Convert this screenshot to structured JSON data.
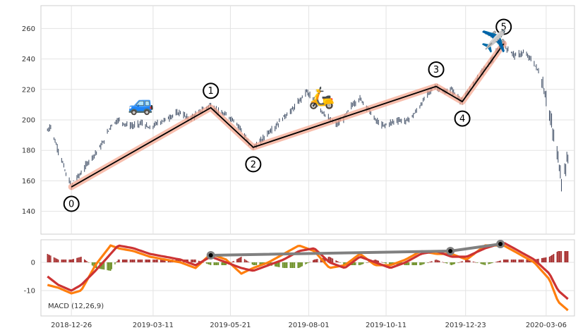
{
  "chart_data": [
    {
      "type": "ohlc",
      "title": "",
      "xlabel": "",
      "ylabel": "",
      "ylim": [
        125,
        275
      ],
      "yticks": [
        140,
        160,
        180,
        200,
        220,
        240,
        260
      ],
      "grid": true,
      "price_trace": [
        [
          "2018-12-04",
          193
        ],
        [
          "2018-12-07",
          196
        ],
        [
          "2018-12-10",
          188
        ],
        [
          "2018-12-14",
          180
        ],
        [
          "2018-12-18",
          172
        ],
        [
          "2018-12-21",
          164
        ],
        [
          "2018-12-24",
          160
        ],
        [
          "2018-12-26",
          156
        ],
        [
          "2018-12-28",
          160
        ],
        [
          "2019-01-04",
          165
        ],
        [
          "2019-01-10",
          172
        ],
        [
          "2019-01-17",
          178
        ],
        [
          "2019-01-24",
          185
        ],
        [
          "2019-01-31",
          196
        ],
        [
          "2019-02-07",
          200
        ],
        [
          "2019-02-14",
          197
        ],
        [
          "2019-02-21",
          196
        ],
        [
          "2019-03-01",
          198
        ],
        [
          "2019-03-08",
          194
        ],
        [
          "2019-03-15",
          198
        ],
        [
          "2019-03-22",
          200
        ],
        [
          "2019-03-29",
          203
        ],
        [
          "2019-04-05",
          205
        ],
        [
          "2019-04-12",
          201
        ],
        [
          "2019-04-19",
          203
        ],
        [
          "2019-04-26",
          207
        ],
        [
          "2019-05-03",
          210
        ],
        [
          "2019-05-10",
          205
        ],
        [
          "2019-05-17",
          203
        ],
        [
          "2019-05-24",
          200
        ],
        [
          "2019-05-31",
          194
        ],
        [
          "2019-06-07",
          184
        ],
        [
          "2019-06-11",
          182
        ],
        [
          "2019-06-18",
          186
        ],
        [
          "2019-06-25",
          192
        ],
        [
          "2019-07-02",
          196
        ],
        [
          "2019-07-09",
          202
        ],
        [
          "2019-07-16",
          206
        ],
        [
          "2019-07-23",
          212
        ],
        [
          "2019-07-30",
          219
        ],
        [
          "2019-08-06",
          212
        ],
        [
          "2019-08-13",
          206
        ],
        [
          "2019-08-20",
          200
        ],
        [
          "2019-08-27",
          197
        ],
        [
          "2019-09-03",
          202
        ],
        [
          "2019-09-10",
          210
        ],
        [
          "2019-09-17",
          214
        ],
        [
          "2019-09-24",
          208
        ],
        [
          "2019-10-01",
          200
        ],
        [
          "2019-10-08",
          196
        ],
        [
          "2019-10-15",
          198
        ],
        [
          "2019-10-22",
          200
        ],
        [
          "2019-10-29",
          199
        ],
        [
          "2019-11-05",
          203
        ],
        [
          "2019-11-12",
          210
        ],
        [
          "2019-11-19",
          218
        ],
        [
          "2019-11-26",
          222
        ],
        [
          "2019-12-03",
          218
        ],
        [
          "2019-12-10",
          220
        ],
        [
          "2019-12-17",
          214
        ],
        [
          "2019-12-20",
          212
        ],
        [
          "2019-12-27",
          220
        ],
        [
          "2020-01-03",
          228
        ],
        [
          "2020-01-10",
          234
        ],
        [
          "2020-01-17",
          240
        ],
        [
          "2020-01-22",
          246
        ],
        [
          "2020-01-27",
          250
        ],
        [
          "2020-01-31",
          246
        ],
        [
          "2020-02-07",
          242
        ],
        [
          "2020-02-14",
          244
        ],
        [
          "2020-02-21",
          240
        ],
        [
          "2020-02-28",
          232
        ],
        [
          "2020-03-04",
          220
        ],
        [
          "2020-03-09",
          205
        ],
        [
          "2020-03-13",
          188
        ],
        [
          "2020-03-17",
          175
        ],
        [
          "2020-03-20",
          160
        ],
        [
          "2020-03-24",
          170
        ],
        [
          "2020-03-26",
          175
        ]
      ],
      "pivots": [
        {
          "label": "0",
          "x": "2018-12-26",
          "y": 156
        },
        {
          "label": "1",
          "x": "2019-05-03",
          "y": 208
        },
        {
          "label": "2",
          "x": "2019-06-11",
          "y": 182
        },
        {
          "label": "3",
          "x": "2019-11-26",
          "y": 222
        },
        {
          "label": "4",
          "x": "2019-12-20",
          "y": 212
        },
        {
          "label": "5",
          "x": "2020-01-27",
          "y": 250
        }
      ],
      "colors": {
        "candles": "#3b4a62",
        "zigzag": "#000000",
        "zigzag_glow": "#f4a38a"
      }
    },
    {
      "type": "bar_line",
      "ylim": [
        -19,
        8
      ],
      "yticks": [
        0,
        -10
      ],
      "annotation": "MACD (12,26,9)",
      "macd_line": [
        [
          "2018-12-04",
          -5
        ],
        [
          "2018-12-14",
          -8
        ],
        [
          "2018-12-26",
          -10
        ],
        [
          "2019-01-04",
          -8
        ],
        [
          "2019-01-17",
          -3
        ],
        [
          "2019-01-31",
          3
        ],
        [
          "2019-02-07",
          6
        ],
        [
          "2019-02-21",
          5
        ],
        [
          "2019-03-08",
          3
        ],
        [
          "2019-03-22",
          2
        ],
        [
          "2019-04-05",
          1
        ],
        [
          "2019-04-19",
          -1
        ],
        [
          "2019-05-03",
          2
        ],
        [
          "2019-05-17",
          0
        ],
        [
          "2019-05-31",
          -2
        ],
        [
          "2019-06-11",
          -3
        ],
        [
          "2019-06-25",
          -1
        ],
        [
          "2019-07-09",
          1
        ],
        [
          "2019-07-23",
          4
        ],
        [
          "2019-08-06",
          5
        ],
        [
          "2019-08-20",
          0
        ],
        [
          "2019-09-03",
          -2
        ],
        [
          "2019-09-17",
          2
        ],
        [
          "2019-10-01",
          0
        ],
        [
          "2019-10-15",
          -2
        ],
        [
          "2019-10-29",
          0
        ],
        [
          "2019-11-12",
          3
        ],
        [
          "2019-11-26",
          4
        ],
        [
          "2019-12-10",
          2
        ],
        [
          "2019-12-24",
          2
        ],
        [
          "2020-01-10",
          5
        ],
        [
          "2020-01-27",
          7
        ],
        [
          "2020-02-10",
          4
        ],
        [
          "2020-02-24",
          1
        ],
        [
          "2020-03-09",
          -4
        ],
        [
          "2020-03-17",
          -10
        ],
        [
          "2020-03-26",
          -13
        ]
      ],
      "signal_line": [
        [
          "2018-12-04",
          -8
        ],
        [
          "2018-12-14",
          -9
        ],
        [
          "2018-12-26",
          -11
        ],
        [
          "2019-01-04",
          -10
        ],
        [
          "2019-01-17",
          -1
        ],
        [
          "2019-01-31",
          6
        ],
        [
          "2019-02-07",
          5
        ],
        [
          "2019-02-21",
          4
        ],
        [
          "2019-03-08",
          2
        ],
        [
          "2019-03-22",
          1
        ],
        [
          "2019-04-05",
          0
        ],
        [
          "2019-04-19",
          -2
        ],
        [
          "2019-05-03",
          3
        ],
        [
          "2019-05-17",
          1
        ],
        [
          "2019-05-31",
          -4
        ],
        [
          "2019-06-11",
          -2
        ],
        [
          "2019-06-25",
          0
        ],
        [
          "2019-07-09",
          3
        ],
        [
          "2019-07-23",
          6
        ],
        [
          "2019-08-06",
          4
        ],
        [
          "2019-08-20",
          -2
        ],
        [
          "2019-09-03",
          -1
        ],
        [
          "2019-09-17",
          3
        ],
        [
          "2019-10-01",
          -1
        ],
        [
          "2019-10-15",
          -1
        ],
        [
          "2019-10-29",
          1
        ],
        [
          "2019-11-12",
          4
        ],
        [
          "2019-11-26",
          3
        ],
        [
          "2019-12-10",
          3
        ],
        [
          "2019-12-24",
          1
        ],
        [
          "2020-01-10",
          6
        ],
        [
          "2020-01-27",
          6
        ],
        [
          "2020-02-10",
          3
        ],
        [
          "2020-02-24",
          0
        ],
        [
          "2020-03-09",
          -6
        ],
        [
          "2020-03-17",
          -14
        ],
        [
          "2020-03-26",
          -17
        ]
      ],
      "divergence_markers": [
        {
          "x": "2019-05-03",
          "y": 2.5
        },
        {
          "x": "2019-12-09",
          "y": 4
        },
        {
          "x": "2020-01-24",
          "y": 6.5
        }
      ],
      "colors": {
        "macd": "#cc3333",
        "signal": "#ff7f0e",
        "hist_positive": "#a52a2a",
        "hist_negative": "#6b8e23",
        "divergence": "#808080"
      }
    }
  ],
  "xaxis": {
    "ticks": [
      {
        "date": "2018-12-26",
        "label": "2018-12-26"
      },
      {
        "date": "2019-03-11",
        "label": "2019-03-11"
      },
      {
        "date": "2019-05-21",
        "label": "2019-05-21"
      },
      {
        "date": "2019-08-01",
        "label": "2019-08-01"
      },
      {
        "date": "2019-10-11",
        "label": "2019-10-11"
      },
      {
        "date": "2019-12-23",
        "label": "2019-12-23"
      },
      {
        "date": "2020-03-06",
        "label": "2020-03-06"
      }
    ]
  },
  "decorations": [
    {
      "name": "car-icon",
      "glyph": "🚙",
      "x": "2019-02-28",
      "y": 206
    },
    {
      "name": "scooter-icon",
      "glyph": "🛵",
      "x": "2019-08-13",
      "y": 210
    },
    {
      "name": "airplane-icon",
      "glyph": "✈️",
      "x": "2020-01-18",
      "y": 247
    }
  ]
}
